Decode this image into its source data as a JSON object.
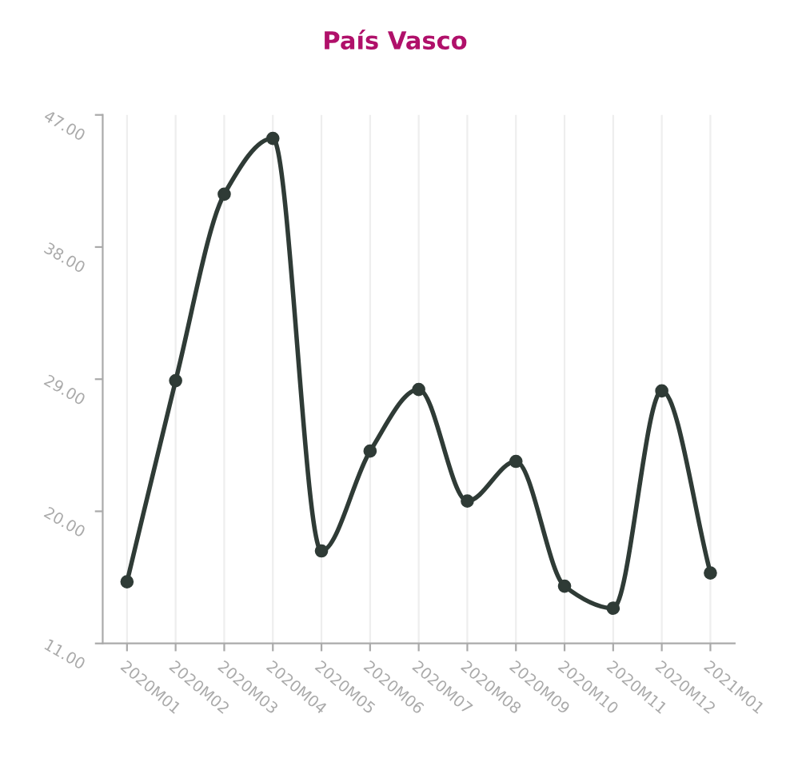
{
  "chart_data": {
    "type": "line",
    "title": "País Vasco",
    "categories": [
      "2020M01",
      "2020M02",
      "2020M03",
      "2020M04",
      "2020M05",
      "2020M06",
      "2020M07",
      "2020M08",
      "2020M09",
      "2020M10",
      "2020M11",
      "2020M12",
      "2021M01"
    ],
    "series": [
      {
        "color": "#2f3b36",
        "values": [
          15.2,
          28.9,
          41.6,
          45.4,
          17.3,
          24.1,
          28.3,
          20.7,
          23.4,
          14.9,
          13.4,
          28.2,
          15.8
        ]
      }
    ],
    "ylim": [
      11,
      47
    ],
    "yticks": [
      {
        "value": 11,
        "label": "11.00"
      },
      {
        "value": 20,
        "label": "20.00"
      },
      {
        "value": 29,
        "label": "29.00"
      },
      {
        "value": 38,
        "label": "38.00"
      },
      {
        "value": 47,
        "label": "47.00"
      }
    ],
    "grid": "x",
    "marker": "circle",
    "line_style": "solid"
  }
}
